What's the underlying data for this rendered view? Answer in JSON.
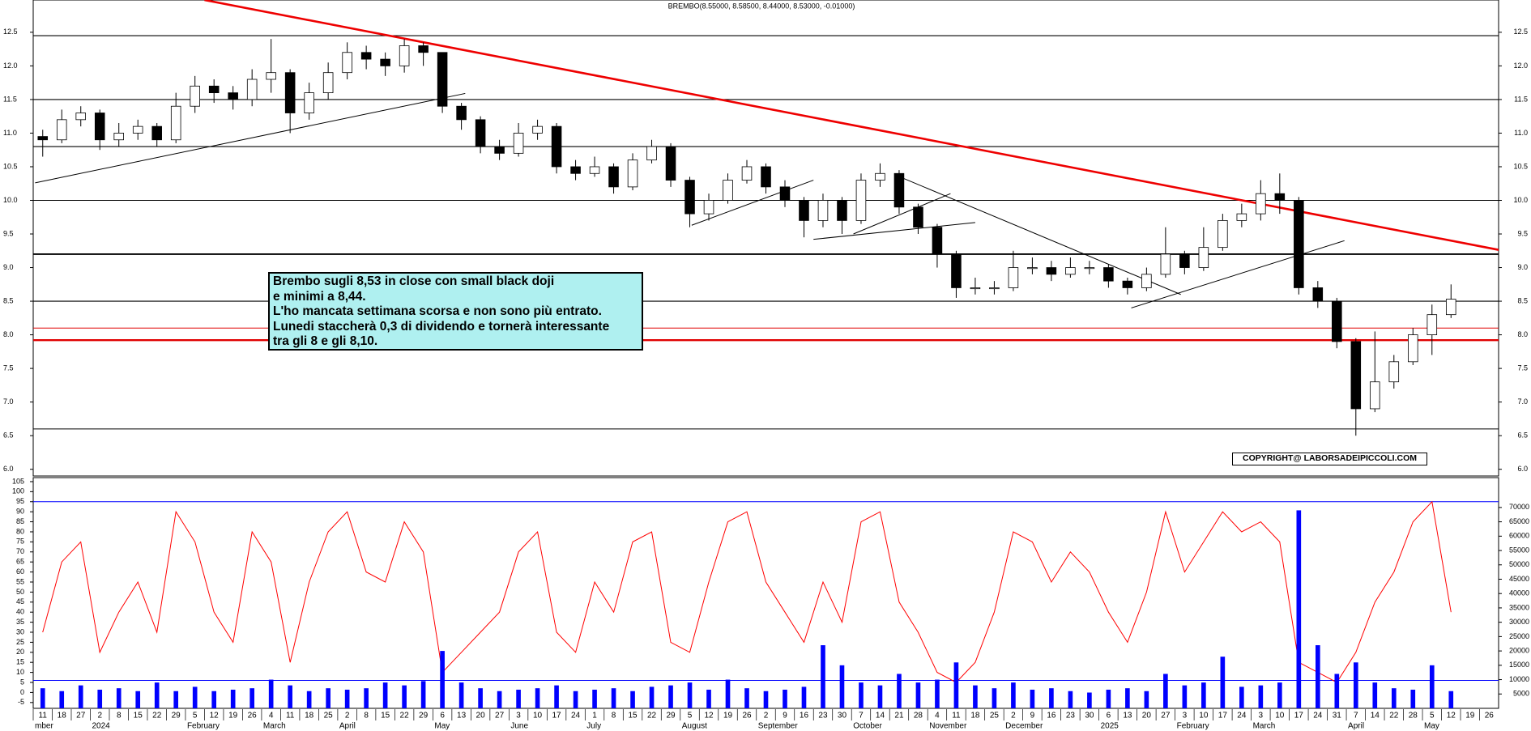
{
  "chart_data": [
    {
      "type": "candlestick",
      "title": "BREMBO(8.55000, 8.58500, 8.44000, 8.53000, -0.01000)",
      "categories": [
        "11",
        "18",
        "27",
        "2",
        "8",
        "15",
        "22",
        "29",
        "5",
        "12",
        "19",
        "26",
        "4",
        "11",
        "18",
        "25",
        "2",
        "8",
        "15",
        "22",
        "29",
        "6",
        "13",
        "20",
        "27",
        "3",
        "10",
        "17",
        "24",
        "1",
        "8",
        "15",
        "22",
        "29",
        "5",
        "12",
        "19",
        "26",
        "2",
        "9",
        "16",
        "23",
        "30",
        "7",
        "14",
        "21",
        "28",
        "4",
        "11",
        "18",
        "25",
        "2",
        "9",
        "16",
        "23",
        "30",
        "6",
        "13",
        "20",
        "27",
        "3",
        "10",
        "17",
        "24",
        "3",
        "10",
        "17",
        "24",
        "31",
        "7",
        "14",
        "22",
        "28",
        "5",
        "12",
        "19",
        "26"
      ],
      "month_labels": [
        "mber",
        null,
        null,
        "2024",
        null,
        null,
        null,
        null,
        "February",
        null,
        null,
        null,
        "March",
        null,
        null,
        null,
        "April",
        null,
        null,
        null,
        null,
        "May",
        null,
        null,
        null,
        "June",
        null,
        null,
        null,
        "July",
        null,
        null,
        null,
        null,
        "August",
        null,
        null,
        null,
        "September",
        null,
        null,
        null,
        null,
        "October",
        null,
        null,
        null,
        "November",
        null,
        null,
        null,
        "December",
        null,
        null,
        null,
        null,
        "2025",
        null,
        null,
        null,
        "February",
        null,
        null,
        null,
        "March",
        null,
        null,
        null,
        null,
        "April",
        null,
        null,
        null,
        "May",
        null,
        null,
        null
      ],
      "open": [
        10.95,
        10.9,
        11.2,
        11.3,
        10.9,
        11.0,
        11.1,
        10.9,
        11.4,
        11.7,
        11.6,
        11.5,
        11.8,
        11.9,
        11.3,
        11.6,
        11.9,
        12.2,
        12.1,
        12.0,
        12.3,
        12.2,
        11.4,
        11.2,
        10.8,
        10.7,
        11.0,
        11.1,
        10.5,
        10.4,
        10.5,
        10.2,
        10.6,
        10.8,
        10.3,
        9.8,
        10.0,
        10.3,
        10.5,
        10.2,
        10.0,
        9.7,
        10.0,
        9.7,
        10.3,
        10.4,
        9.9,
        9.6,
        9.2,
        8.7,
        8.7,
        8.7,
        9.0,
        9.0,
        8.9,
        9.0,
        9.0,
        8.8,
        8.7,
        8.9,
        9.2,
        9.0,
        9.3,
        9.7,
        9.8,
        10.1,
        10.0,
        8.7,
        8.5,
        7.9,
        6.9,
        7.3,
        7.6,
        8.0,
        8.3,
        null,
        null
      ],
      "high": [
        11.05,
        11.35,
        11.4,
        11.35,
        11.15,
        11.2,
        11.15,
        11.6,
        11.85,
        11.8,
        11.7,
        11.95,
        12.4,
        11.95,
        11.75,
        12.05,
        12.35,
        12.3,
        12.2,
        12.4,
        12.35,
        12.2,
        11.45,
        11.25,
        10.9,
        11.15,
        11.2,
        11.15,
        10.6,
        10.65,
        10.55,
        10.7,
        10.9,
        10.85,
        10.35,
        10.1,
        10.4,
        10.6,
        10.55,
        10.3,
        10.05,
        10.1,
        10.05,
        10.4,
        10.55,
        10.45,
        9.95,
        9.65,
        9.25,
        8.85,
        8.8,
        9.25,
        9.15,
        9.1,
        9.15,
        9.1,
        9.05,
        8.85,
        9.0,
        9.6,
        9.25,
        9.6,
        9.8,
        9.95,
        10.3,
        10.4,
        10.05,
        8.8,
        8.55,
        7.95,
        8.05,
        7.7,
        8.1,
        8.45,
        8.75,
        null,
        null
      ],
      "low": [
        10.65,
        10.85,
        11.1,
        10.75,
        10.8,
        10.9,
        10.8,
        10.85,
        11.3,
        11.45,
        11.35,
        11.4,
        11.6,
        11.0,
        11.2,
        11.5,
        11.8,
        11.95,
        11.85,
        11.9,
        12.0,
        11.3,
        11.05,
        10.7,
        10.6,
        10.65,
        10.9,
        10.4,
        10.3,
        10.35,
        10.1,
        10.15,
        10.55,
        10.2,
        9.6,
        9.7,
        9.95,
        10.25,
        10.1,
        9.9,
        9.45,
        9.6,
        9.5,
        9.65,
        10.2,
        9.8,
        9.5,
        9.0,
        8.55,
        8.6,
        8.6,
        8.65,
        8.9,
        8.8,
        8.85,
        8.9,
        8.7,
        8.6,
        8.65,
        8.85,
        8.9,
        8.95,
        9.25,
        9.6,
        9.7,
        9.8,
        8.6,
        8.4,
        7.8,
        6.5,
        6.85,
        7.2,
        7.55,
        7.7,
        8.25,
        null,
        null
      ],
      "close": [
        10.9,
        11.2,
        11.3,
        10.9,
        11.0,
        11.1,
        10.9,
        11.4,
        11.7,
        11.6,
        11.5,
        11.8,
        11.9,
        11.3,
        11.6,
        11.9,
        12.2,
        12.1,
        12.0,
        12.3,
        12.2,
        11.4,
        11.2,
        10.8,
        10.7,
        11.0,
        11.1,
        10.5,
        10.4,
        10.5,
        10.2,
        10.6,
        10.8,
        10.3,
        9.8,
        10.0,
        10.3,
        10.5,
        10.2,
        10.0,
        9.7,
        10.0,
        9.7,
        10.3,
        10.4,
        9.9,
        9.6,
        9.2,
        8.7,
        8.7,
        8.7,
        9.0,
        9.0,
        8.9,
        9.0,
        9.0,
        8.8,
        8.7,
        8.9,
        9.2,
        9.0,
        9.3,
        9.7,
        9.8,
        10.1,
        10.0,
        8.7,
        8.5,
        7.9,
        6.9,
        7.3,
        7.6,
        8.0,
        8.3,
        8.53,
        null,
        null
      ],
      "ylim": [
        5.9,
        12.98
      ],
      "yticks": [
        {
          "value": 6,
          "label": "6.0"
        },
        6.5,
        {
          "value": 7,
          "label": "7.0"
        },
        7.5,
        {
          "value": 8,
          "label": "8.0"
        },
        8.5,
        {
          "value": 9,
          "label": "9.0"
        },
        9.5,
        {
          "value": 10,
          "label": "10.0"
        },
        10.5,
        {
          "value": 11,
          "label": "11.0"
        },
        11.5,
        {
          "value": 12,
          "label": "12.0"
        },
        12.5
      ],
      "levels": [
        12.45,
        11.5,
        10.8,
        10.0,
        9.2,
        8.5,
        6.6
      ],
      "level_color": "#000000",
      "red_levels": [
        8.1,
        7.92
      ],
      "red_level_color": "#e00000",
      "trendlines": [
        {
          "from": [
            8.5,
            12.98
          ],
          "to": [
            79.5,
            9.1
          ],
          "color": "#ee0000"
        },
        {
          "from": [
            -0.4,
            10.26
          ],
          "to": [
            22.2,
            11.59
          ],
          "color": "#000000"
        },
        {
          "from": [
            45.2,
            10.33
          ],
          "to": [
            59.8,
            8.6
          ],
          "color": "#000000"
        },
        {
          "from": [
            57.2,
            8.4
          ],
          "to": [
            68.4,
            9.4
          ],
          "color": "#000000"
        },
        {
          "from": [
            34.1,
            9.63
          ],
          "to": [
            40.5,
            10.3
          ],
          "color": "#000000"
        },
        {
          "from": [
            40.5,
            9.42
          ],
          "to": [
            49,
            9.67
          ],
          "color": "#000000"
        },
        {
          "from": [
            42.6,
            9.5
          ],
          "to": [
            47.7,
            10.1
          ],
          "color": "#000000"
        }
      ],
      "annotation": [
        "Brembo sugli 8,53 in close con small black doji",
        "e minimi a 8,44.",
        "L'ho mancata settimana scorsa e non sono più entrato.",
        "Lunedi staccherà 0,3 di dividendo e tornerà interessante",
        "tra gli 8 e gli 8,10."
      ],
      "copyright": "COPYRIGHT@ LABORSADEIPICCOLI.COM"
    },
    {
      "type": "combo",
      "series": [
        {
          "color": "#ff0000",
          "values": [
            30,
            65,
            75,
            20,
            40,
            55,
            30,
            90,
            75,
            40,
            25,
            80,
            65,
            15,
            55,
            80,
            90,
            60,
            55,
            85,
            70,
            10,
            20,
            30,
            40,
            70,
            80,
            30,
            20,
            55,
            40,
            75,
            80,
            25,
            20,
            55,
            85,
            90,
            55,
            40,
            25,
            55,
            35,
            85,
            90,
            45,
            30,
            10,
            5,
            15,
            40,
            80,
            75,
            55,
            70,
            60,
            40,
            25,
            50,
            90,
            60,
            75,
            90,
            80,
            85,
            75,
            15,
            10,
            5,
            20,
            45,
            60,
            85,
            95,
            40,
            null,
            null
          ]
        },
        {
          "color": "#0000ff",
          "axis": "y2",
          "values": [
            7000,
            6000,
            8000,
            6500,
            7000,
            6000,
            9000,
            6000,
            7500,
            6000,
            6500,
            7000,
            10000,
            8000,
            6000,
            7000,
            6500,
            7000,
            9000,
            8000,
            9500,
            20000,
            9000,
            7000,
            6000,
            6500,
            7000,
            8000,
            6000,
            6500,
            7000,
            6000,
            7500,
            8000,
            9000,
            6500,
            10000,
            7000,
            6000,
            6500,
            7500,
            22000,
            15000,
            9000,
            8000,
            12000,
            9000,
            10000,
            16000,
            8000,
            7000,
            9000,
            6500,
            7000,
            6000,
            5500,
            6500,
            7000,
            6000,
            12000,
            8000,
            9000,
            18000,
            7500,
            8000,
            9000,
            69000,
            22000,
            12000,
            16000,
            9000,
            7000,
            6500,
            15000,
            6000,
            null,
            null
          ]
        }
      ],
      "ylim": [
        -7.9,
        107
      ],
      "yticks": [
        -5,
        0,
        5,
        10,
        15,
        20,
        25,
        30,
        35,
        40,
        45,
        50,
        55,
        60,
        65,
        70,
        75,
        80,
        85,
        90,
        95,
        100,
        105
      ],
      "y2lim": [
        0,
        80400
      ],
      "y2ticks": [
        5000,
        10000,
        15000,
        20000,
        25000,
        30000,
        35000,
        40000,
        45000,
        50000,
        55000,
        60000,
        65000,
        70000
      ],
      "levels": [
        95,
        6
      ],
      "level_color": "#0000ff"
    }
  ]
}
